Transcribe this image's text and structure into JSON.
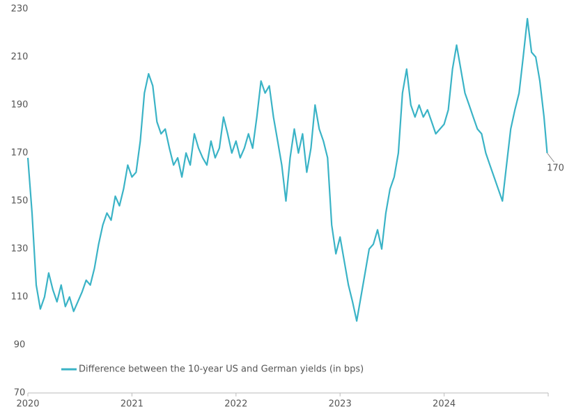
{
  "chart_data": {
    "type": "line",
    "x": [
      2020.0,
      2020.04,
      2020.08,
      2020.12,
      2020.16,
      2020.2,
      2020.24,
      2020.28,
      2020.32,
      2020.36,
      2020.4,
      2020.44,
      2020.48,
      2020.52,
      2020.56,
      2020.6,
      2020.64,
      2020.68,
      2020.72,
      2020.76,
      2020.8,
      2020.84,
      2020.88,
      2020.92,
      2020.96,
      2021.0,
      2021.04,
      2021.08,
      2021.12,
      2021.16,
      2021.2,
      2021.24,
      2021.28,
      2021.32,
      2021.36,
      2021.4,
      2021.44,
      2021.48,
      2021.52,
      2021.56,
      2021.6,
      2021.64,
      2021.68,
      2021.72,
      2021.76,
      2021.8,
      2021.84,
      2021.88,
      2021.92,
      2021.96,
      2022.0,
      2022.04,
      2022.08,
      2022.12,
      2022.16,
      2022.2,
      2022.24,
      2022.28,
      2022.32,
      2022.36,
      2022.4,
      2022.44,
      2022.48,
      2022.52,
      2022.56,
      2022.6,
      2022.64,
      2022.68,
      2022.72,
      2022.76,
      2022.8,
      2022.84,
      2022.88,
      2022.92,
      2022.96,
      2023.0,
      2023.04,
      2023.08,
      2023.12,
      2023.16,
      2023.2,
      2023.24,
      2023.28,
      2023.32,
      2023.36,
      2023.4,
      2023.44,
      2023.48,
      2023.52,
      2023.56,
      2023.6,
      2023.64,
      2023.68,
      2023.72,
      2023.76,
      2023.8,
      2023.84,
      2023.88,
      2023.92,
      2023.96,
      2024.0,
      2024.04,
      2024.08,
      2024.12,
      2024.16,
      2024.2,
      2024.24,
      2024.28,
      2024.32,
      2024.36,
      2024.4,
      2024.44,
      2024.48,
      2024.52,
      2024.56,
      2024.6,
      2024.64,
      2024.68,
      2024.72,
      2024.76,
      2024.8,
      2024.84,
      2024.88,
      2024.92,
      2024.96,
      2024.99
    ],
    "series": [
      {
        "name": "Difference between the 10-year US and German yields (in bps)",
        "color": "#3ab3c6",
        "values": [
          168,
          145,
          115,
          105,
          110,
          120,
          113,
          108,
          115,
          106,
          110,
          104,
          108,
          112,
          117,
          115,
          122,
          132,
          140,
          145,
          142,
          152,
          148,
          155,
          165,
          160,
          162,
          175,
          195,
          203,
          198,
          183,
          178,
          180,
          172,
          165,
          168,
          160,
          170,
          165,
          178,
          172,
          168,
          165,
          175,
          168,
          172,
          185,
          178,
          170,
          175,
          168,
          172,
          178,
          172,
          185,
          200,
          195,
          198,
          185,
          175,
          165,
          150,
          168,
          180,
          170,
          178,
          162,
          172,
          190,
          180,
          175,
          168,
          140,
          128,
          135,
          125,
          115,
          108,
          100,
          110,
          120,
          130,
          132,
          138,
          130,
          145,
          155,
          160,
          170,
          195,
          205,
          190,
          185,
          190,
          185,
          188,
          183,
          178,
          180,
          182,
          188,
          205,
          215,
          205,
          195,
          190,
          185,
          180,
          178,
          170,
          165,
          160,
          155,
          150,
          165,
          180,
          188,
          195,
          210,
          226,
          212,
          210,
          200,
          185,
          170
        ]
      }
    ],
    "xlim": [
      2020,
      2025
    ],
    "xticks": [
      2020,
      2021,
      2022,
      2023,
      2024
    ],
    "ylim": [
      70,
      230
    ],
    "yticks": [
      70,
      90,
      110,
      130,
      150,
      170,
      190,
      210,
      230
    ]
  }
}
